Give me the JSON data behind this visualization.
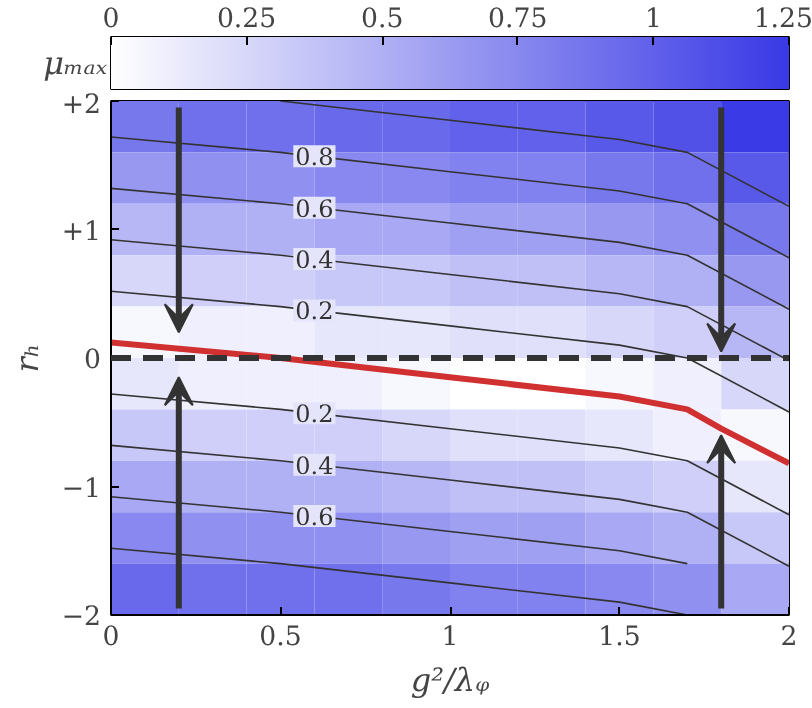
{
  "chart_data": {
    "type": "heatmap",
    "xlabel": "g²/λᵩ",
    "ylabel": "rₕ",
    "clabel": "μₘₐₓ",
    "x": [
      0.1,
      0.3,
      0.5,
      0.7,
      0.9,
      1.1,
      1.3,
      1.5,
      1.7,
      1.9
    ],
    "y": [
      1.8,
      1.4,
      1.0,
      0.6,
      0.2,
      -0.2,
      -0.6,
      -1.0,
      -1.4,
      -1.8
    ],
    "cells": [
      [
        0.85,
        0.9,
        0.9,
        0.95,
        0.95,
        1.0,
        1.0,
        1.05,
        1.1,
        1.25
      ],
      [
        0.65,
        0.7,
        0.7,
        0.75,
        0.75,
        0.8,
        0.8,
        0.85,
        0.9,
        1.05
      ],
      [
        0.45,
        0.5,
        0.5,
        0.55,
        0.55,
        0.6,
        0.6,
        0.65,
        0.7,
        0.85
      ],
      [
        0.25,
        0.3,
        0.3,
        0.35,
        0.35,
        0.4,
        0.4,
        0.45,
        0.5,
        0.65
      ],
      [
        0.05,
        0.1,
        0.1,
        0.15,
        0.15,
        0.2,
        0.2,
        0.25,
        0.3,
        0.45
      ],
      [
        0.15,
        0.1,
        0.1,
        0.1,
        0.05,
        0.0,
        0.0,
        0.05,
        0.1,
        0.25
      ],
      [
        0.35,
        0.3,
        0.3,
        0.3,
        0.25,
        0.2,
        0.2,
        0.15,
        0.1,
        0.05
      ],
      [
        0.55,
        0.5,
        0.5,
        0.5,
        0.45,
        0.4,
        0.4,
        0.35,
        0.3,
        0.15
      ],
      [
        0.75,
        0.7,
        0.7,
        0.7,
        0.65,
        0.6,
        0.6,
        0.55,
        0.5,
        0.35
      ],
      [
        0.95,
        0.9,
        0.9,
        0.9,
        0.85,
        0.8,
        0.8,
        0.75,
        0.7,
        0.55
      ]
    ],
    "clim": [
      0,
      1.25
    ],
    "cticks": [
      0,
      0.25,
      0.5,
      0.75,
      1,
      1.25
    ],
    "xlim": [
      0,
      2
    ],
    "xticks": [
      0,
      0.5,
      1,
      1.5,
      2
    ],
    "ylim": [
      -2,
      2
    ],
    "yticks": [
      {
        "value": -2,
        "label": "−2"
      },
      {
        "value": -1,
        "label": "−1"
      },
      0,
      {
        "value": 1,
        "label": "+1"
      },
      {
        "value": 2,
        "label": "+2"
      }
    ],
    "series": [
      {
        "type": "line",
        "color": "#333333",
        "x": [
          0.5,
          1,
          1.5,
          1.7,
          2
        ],
        "values": [
          2.0,
          1.85,
          1.7,
          1.6,
          1.18
        ]
      },
      {
        "type": "line",
        "color": "#333333",
        "x": [
          0,
          0.5,
          1,
          1.5,
          1.7,
          2
        ],
        "values": [
          1.72,
          1.6,
          1.45,
          1.3,
          1.2,
          0.78
        ]
      },
      {
        "type": "line",
        "color": "#333333",
        "x": [
          0,
          0.5,
          1,
          1.5,
          1.7,
          2
        ],
        "values": [
          1.32,
          1.2,
          1.05,
          0.9,
          0.8,
          0.38
        ]
      },
      {
        "type": "line",
        "color": "#333333",
        "x": [
          0,
          0.5,
          1,
          1.5,
          1.7,
          2
        ],
        "values": [
          0.92,
          0.8,
          0.65,
          0.5,
          0.4,
          -0.02
        ]
      },
      {
        "type": "line",
        "color": "#333333",
        "x": [
          0,
          0.5,
          1,
          1.5,
          1.7,
          2
        ],
        "values": [
          0.52,
          0.4,
          0.25,
          0.1,
          0.0,
          -0.42
        ]
      },
      {
        "type": "line",
        "color": "#d03030",
        "x": [
          0,
          0.5,
          1,
          1.5,
          1.7,
          1.8,
          2
        ],
        "values": [
          0.12,
          0.0,
          -0.15,
          -0.3,
          -0.4,
          -0.55,
          -0.82
        ]
      },
      {
        "type": "line",
        "color": "#333333",
        "x": [
          0,
          0.5,
          1,
          1.5,
          1.7,
          2
        ],
        "values": [
          -0.28,
          -0.4,
          -0.55,
          -0.7,
          -0.8,
          -1.22
        ]
      },
      {
        "type": "line",
        "color": "#333333",
        "x": [
          0,
          0.5,
          1,
          1.5,
          1.7,
          2
        ],
        "values": [
          -0.68,
          -0.8,
          -0.95,
          -1.1,
          -1.2,
          -1.62
        ]
      },
      {
        "type": "line",
        "color": "#333333",
        "x": [
          0,
          0.5,
          1,
          1.5,
          1.7
        ],
        "values": [
          -1.08,
          -1.2,
          -1.35,
          -1.5,
          -1.6
        ]
      },
      {
        "type": "line",
        "color": "#333333",
        "x": [
          0,
          0.5,
          1,
          1.5,
          1.7
        ],
        "values": [
          -1.48,
          -1.6,
          -1.75,
          -1.9,
          -2.0
        ]
      }
    ],
    "ref_lines": [
      {
        "axis": "y",
        "value": 0,
        "color": "#333333",
        "line_style": "dashed"
      }
    ],
    "annotations": [
      {
        "text": "0.8",
        "y": 1.57
      },
      {
        "text": "0.6",
        "y": 1.17
      },
      {
        "text": "0.4",
        "y": 0.77
      },
      {
        "text": "0.2",
        "y": 0.37
      },
      {
        "text": "0.2",
        "y": -0.43
      },
      {
        "text": "0.4",
        "y": -0.83
      },
      {
        "text": "0.6",
        "y": -1.23
      }
    ]
  }
}
